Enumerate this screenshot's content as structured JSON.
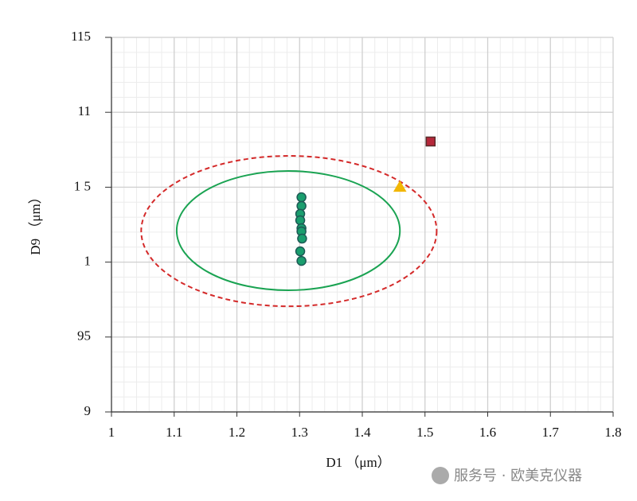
{
  "chart_data": {
    "type": "scatter",
    "x_label": "D1 （μm）",
    "y_label": "D9 （μm）",
    "watermark": "服务号 · 欧美克仪器",
    "xlim": [
      1,
      1.8
    ],
    "xticks": [
      1,
      1.1,
      1.2,
      1.3,
      1.4,
      1.5,
      1.6,
      1.7,
      1.8
    ],
    "ylim": [
      90,
      115
    ],
    "yticks": [
      {
        "value": 90,
        "label": "9"
      },
      95,
      {
        "value": 100,
        "label": "1"
      },
      {
        "value": 105,
        "label": "1 5"
      },
      {
        "value": 110,
        "label": "11"
      },
      115
    ],
    "grid": true,
    "minor_grid": true,
    "minor_divisions": 5,
    "series": [
      {
        "marker": "circle",
        "color": "#1a9e6e",
        "edge": "#1d5a55",
        "x": [
          1.303,
          1.303,
          1.301,
          1.301,
          1.303,
          1.303,
          1.304,
          1.301,
          1.303
        ],
        "values": [
          104.33,
          103.75,
          103.22,
          102.79,
          102.26,
          102.05,
          101.57,
          100.72,
          100.08
        ]
      },
      {
        "marker": "triangle",
        "color": "#f2b705",
        "edge": "#f2b705",
        "x": [
          1.46
        ],
        "values": [
          105.0
        ]
      },
      {
        "marker": "square",
        "color": "#b5273a",
        "edge": "#5a2a2a",
        "x": [
          1.509
        ],
        "values": [
          108.05
        ]
      }
    ],
    "ellipses": [
      {
        "cx": 1.282,
        "cy": 102.1,
        "rx": 0.178,
        "ry": 3.98,
        "color": "#1aa352",
        "dashed": false
      },
      {
        "cx": 1.283,
        "cy": 102.07,
        "rx": 0.2356,
        "ry": 5.02,
        "color": "#d42a2a",
        "dashed": true
      }
    ]
  }
}
